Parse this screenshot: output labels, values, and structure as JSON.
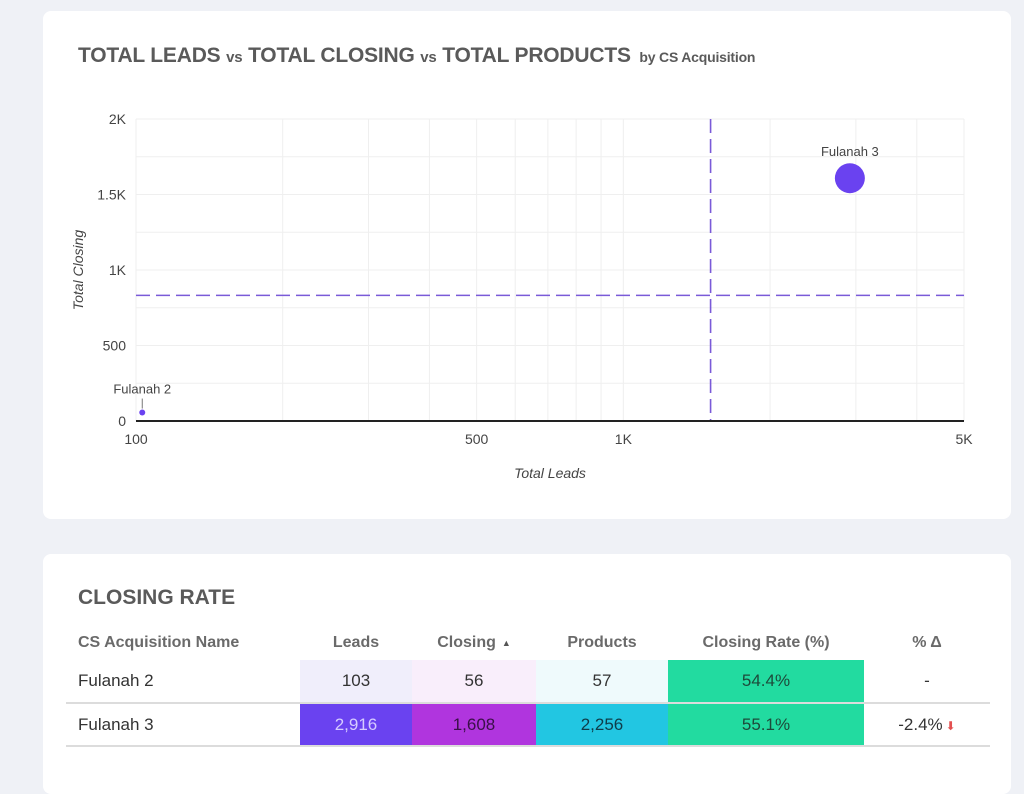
{
  "chart_card": {
    "title_parts": [
      "TOTAL LEADS",
      "vs",
      "TOTAL CLOSING",
      "vs",
      "TOTAL PRODUCTS",
      "by CS Acquisition"
    ]
  },
  "chart_data": {
    "type": "scatter",
    "subtype": "bubble",
    "title": "TOTAL LEADS vs TOTAL CLOSING vs TOTAL PRODUCTS by CS Acquisition",
    "xlabel": "Total Leads",
    "ylabel": "Total Closing",
    "x_scale": "log",
    "xlim": [
      100,
      5000
    ],
    "ylim": [
      0,
      2000
    ],
    "x_ticks": [
      {
        "value": 100,
        "label": "100"
      },
      {
        "value": 500,
        "label": "500"
      },
      {
        "value": 1000,
        "label": "1K"
      },
      {
        "value": 5000,
        "label": "5K"
      }
    ],
    "y_ticks": [
      {
        "value": 0,
        "label": "0"
      },
      {
        "value": 500,
        "label": "500"
      },
      {
        "value": 1000,
        "label": "1K"
      },
      {
        "value": 1500,
        "label": "1.5K"
      },
      {
        "value": 2000,
        "label": "2K"
      }
    ],
    "x_grid": [
      100,
      200,
      300,
      400,
      500,
      600,
      700,
      800,
      900,
      1000,
      2000,
      3000,
      4000,
      5000
    ],
    "y_grid": [
      0,
      250,
      500,
      750,
      1000,
      1250,
      1500,
      1750,
      2000
    ],
    "grid": true,
    "size_field": "Total Products",
    "points": [
      {
        "label": "Fulanah 2",
        "x": 103,
        "y": 56,
        "size": 57
      },
      {
        "label": "Fulanah 3",
        "x": 2916,
        "y": 1608,
        "size": 2256
      }
    ],
    "reference_lines": [
      {
        "axis": "x",
        "value": 1510,
        "style": "dashed"
      },
      {
        "axis": "y",
        "value": 832,
        "style": "dashed"
      }
    ],
    "colors": {
      "point": "#6a42f0",
      "reference": "#7a5ad8",
      "grid": "#efefef",
      "axis": "#222222"
    }
  },
  "table_card": {
    "title": "CLOSING RATE",
    "columns": [
      {
        "label": "CS Acquisition Name"
      },
      {
        "label": "Leads"
      },
      {
        "label": "Closing",
        "sort": "ascending"
      },
      {
        "label": "Products"
      },
      {
        "label": "Closing Rate (%)"
      },
      {
        "label": "% Δ"
      }
    ],
    "rows": [
      {
        "name": "Fulanah 2",
        "leads": "103",
        "closing": "56",
        "products": "57",
        "closing_rate": "54.4%",
        "delta": "-",
        "delta_icon": ""
      },
      {
        "name": "Fulanah 3",
        "leads": "2,916",
        "closing": "1,608",
        "products": "2,256",
        "closing_rate": "55.1%",
        "delta": "-2.4%",
        "delta_icon": "arrow-down"
      }
    ],
    "cell_colors": {
      "leads": [
        "#f0eefb",
        "#6a42f0"
      ],
      "closing": [
        "#f9eefb",
        "#b035de"
      ],
      "products": [
        "#effafc",
        "#22c6e2"
      ],
      "closing_rate": [
        "#22dba0",
        "#22dba0"
      ]
    },
    "cell_text_colors": {
      "leads": [
        "#333333",
        "#d6ccff"
      ],
      "closing": [
        "#333333",
        "#3a1048"
      ],
      "products": [
        "#333333",
        "#0f3d4a"
      ],
      "closing_rate": [
        "#1d4a3a",
        "#1d4a3a"
      ]
    }
  }
}
